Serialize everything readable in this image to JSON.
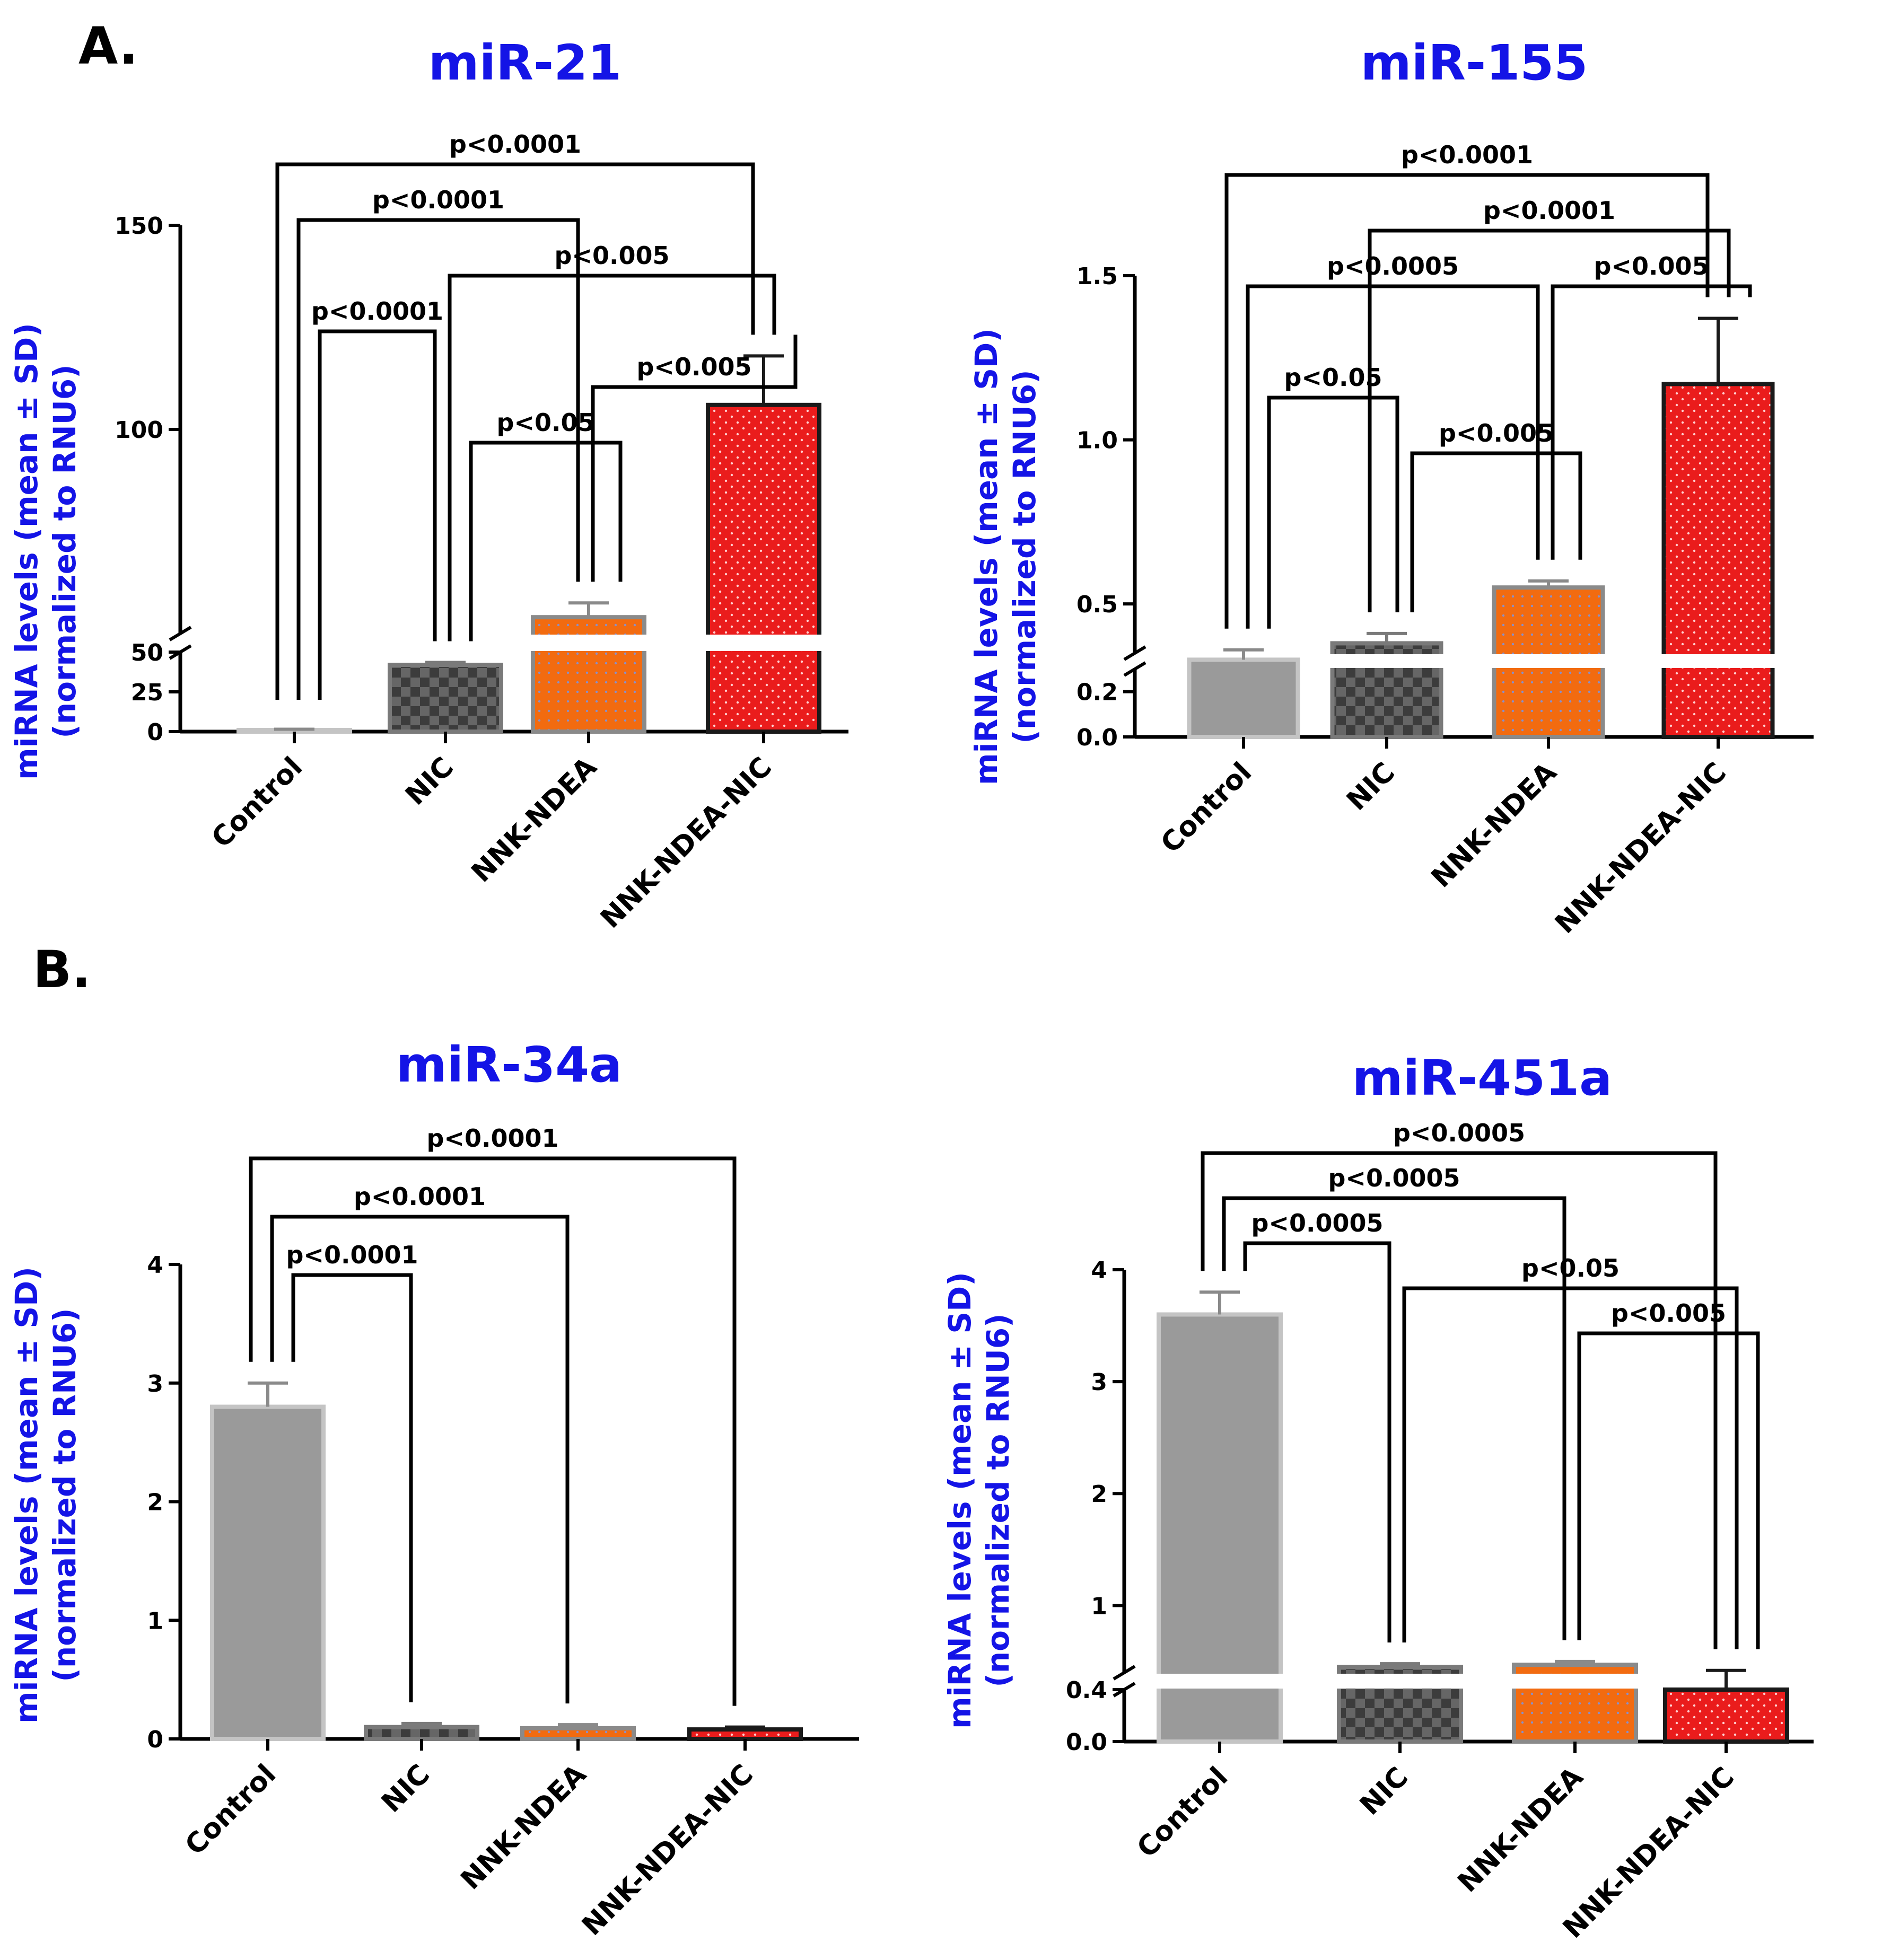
{
  "panels": {
    "a_label": "A.",
    "b_label": "B."
  },
  "y_label": {
    "line1": "miRNA levels (mean ± SD)",
    "line2": "(normalized to RNU6)"
  },
  "colors": {
    "title": "#1414e6",
    "control": "#9a9a9a",
    "nic": "#4a4a4a",
    "nnk_ndea": "#f26b10",
    "nnk_ndea_nic": "#ea1c1c"
  },
  "chart_data": [
    {
      "type": "bar",
      "title": "miR-21",
      "xlabel": "",
      "ylabel": "miRNA levels (mean ± SD) (normalized to RNU6)",
      "categories": [
        "Control",
        "NIC",
        "NNK-NDEA",
        "NNK-NDEA-NIC"
      ],
      "values": [
        1,
        42,
        54,
        106
      ],
      "errors": [
        0.5,
        1.5,
        3.5,
        12
      ],
      "axis_break": {
        "lower": [
          0,
          50
        ],
        "upper": [
          50,
          150
        ]
      },
      "ticks_lower": [
        "0",
        "25",
        "50"
      ],
      "ticks_upper": [
        "50",
        "100",
        "150"
      ],
      "tick_values_lower": [
        0,
        25,
        50
      ],
      "tick_values_upper": [
        50,
        100,
        150
      ],
      "comparisons": [
        {
          "from": 0,
          "to": 3,
          "label": "p<0.0001",
          "level": 1
        },
        {
          "from": 0,
          "to": 2,
          "label": "p<0.0001",
          "level": 2
        },
        {
          "from": 0,
          "to": 1,
          "label": "p<0.0001",
          "level": 4
        },
        {
          "from": 1,
          "to": 3,
          "label": "p<0.005",
          "level": 3
        },
        {
          "from": 2,
          "to": 3,
          "label": "p<0.005",
          "level": 5
        },
        {
          "from": 1,
          "to": 2,
          "label": "p<0.05",
          "level": 6
        }
      ]
    },
    {
      "type": "bar",
      "title": "miR-155",
      "xlabel": "",
      "ylabel": "miRNA levels (mean ± SD) (normalized to RNU6)",
      "categories": [
        "Control",
        "NIC",
        "NNK-NDEA",
        "NNK-NDEA-NIC"
      ],
      "values": [
        0.33,
        0.38,
        0.55,
        1.17
      ],
      "errors": [
        0.03,
        0.03,
        0.02,
        0.2
      ],
      "axis_break": {
        "lower": [
          0,
          0.3
        ],
        "upper": [
          0.35,
          1.5
        ]
      },
      "ticks_lower": [
        "0.0",
        "0.2"
      ],
      "ticks_upper": [
        "0.5",
        "1.0",
        "1.5"
      ],
      "tick_values_lower": [
        0,
        0.2
      ],
      "tick_values_upper": [
        0.5,
        1.0,
        1.5
      ],
      "comparisons": [
        {
          "from": 0,
          "to": 3,
          "label": "p<0.0001",
          "level": 1
        },
        {
          "from": 1,
          "to": 3,
          "label": "p<0.0001",
          "level": 2
        },
        {
          "from": 0,
          "to": 2,
          "label": "p<0.0005",
          "level": 3
        },
        {
          "from": 2,
          "to": 3,
          "label": "p<0.005",
          "level": 3
        },
        {
          "from": 0,
          "to": 1,
          "label": "p<0.05",
          "level": 5
        },
        {
          "from": 1,
          "to": 2,
          "label": "p<0.005",
          "level": 6
        }
      ]
    },
    {
      "type": "bar",
      "title": "miR-34a",
      "xlabel": "",
      "ylabel": "miRNA levels (mean ± SD) (normalized to RNU6)",
      "categories": [
        "Control",
        "NIC",
        "NNK-NDEA",
        "NNK-NDEA-NIC"
      ],
      "values": [
        2.8,
        0.1,
        0.09,
        0.08
      ],
      "errors": [
        0.2,
        0.03,
        0.03,
        0.02
      ],
      "ylim": [
        0,
        4
      ],
      "ticks": [
        "0",
        "1",
        "2",
        "3",
        "4"
      ],
      "tick_values": [
        0,
        1,
        2,
        3,
        4
      ],
      "comparisons": [
        {
          "from": 0,
          "to": 3,
          "label": "p<0.0001",
          "level": 1
        },
        {
          "from": 0,
          "to": 2,
          "label": "p<0.0001",
          "level": 2
        },
        {
          "from": 0,
          "to": 1,
          "label": "p<0.0001",
          "level": 3
        }
      ]
    },
    {
      "type": "bar",
      "title": "miR-451a",
      "xlabel": "",
      "ylabel": "miRNA levels (mean ± SD) (normalized to RNU6)",
      "categories": [
        "Control",
        "NIC",
        "NNK-NDEA",
        "NNK-NDEA-NIC"
      ],
      "values": [
        3.6,
        0.45,
        0.47,
        0.4
      ],
      "errors": [
        0.2,
        0.03,
        0.03,
        0.02
      ],
      "axis_break": {
        "lower": [
          0,
          0.4
        ],
        "upper": [
          0.4,
          4
        ]
      },
      "ticks_lower": [
        "0.0",
        "0.4"
      ],
      "ticks_upper": [
        "1",
        "2",
        "3",
        "4"
      ],
      "tick_values_lower": [
        0,
        0.4
      ],
      "tick_values_upper": [
        1,
        2,
        3,
        4
      ],
      "comparisons": [
        {
          "from": 0,
          "to": 3,
          "label": "p<0.0005",
          "level": 1
        },
        {
          "from": 0,
          "to": 2,
          "label": "p<0.0005",
          "level": 2
        },
        {
          "from": 0,
          "to": 1,
          "label": "p<0.0005",
          "level": 3
        },
        {
          "from": 1,
          "to": 3,
          "label": "p<0.05",
          "level": 4
        },
        {
          "from": 2,
          "to": 3,
          "label": "p<0.005",
          "level": 5
        }
      ]
    }
  ]
}
